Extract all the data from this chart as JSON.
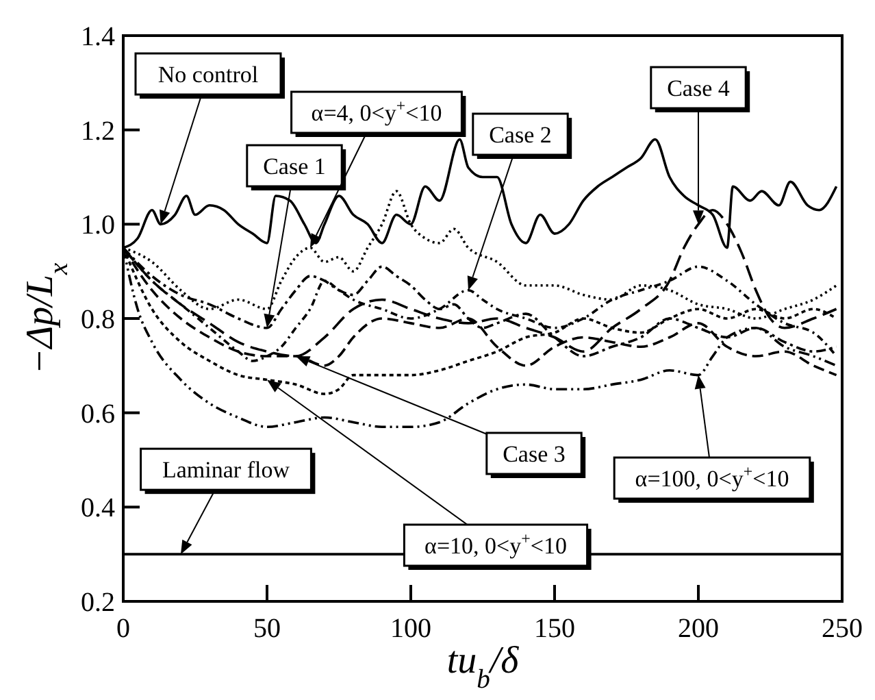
{
  "chart_data": {
    "type": "line",
    "xlabel": "tu$_{b}$/δ",
    "ylabel": "−Δp/L$_{x}$",
    "xlim": [
      0,
      250
    ],
    "ylim": [
      0.2,
      1.4
    ],
    "xticks": [
      0,
      50,
      100,
      150,
      200,
      250
    ],
    "yticks": [
      {
        "value": 0.2,
        "label": "0.2"
      },
      {
        "value": 0.4,
        "label": "0.4"
      },
      {
        "value": 0.6,
        "label": "0.6"
      },
      {
        "value": 0.8,
        "label": "0.8"
      },
      {
        "value": 1.0,
        "label": "1.0"
      },
      {
        "value": 1.2,
        "label": "1.2"
      },
      {
        "value": 1.4,
        "label": "1.4"
      }
    ],
    "grid": false,
    "marker": "none",
    "series": [
      {
        "name": "No control",
        "color": "#000000",
        "line_style": "solid",
        "x": [
          0,
          5,
          10,
          13,
          18,
          22,
          25,
          30,
          35,
          40,
          45,
          50,
          53,
          58,
          63,
          67,
          70,
          75,
          80,
          85,
          90,
          95,
          100,
          105,
          110,
          117,
          120,
          125,
          130,
          135,
          140,
          145,
          150,
          155,
          160,
          165,
          170,
          175,
          180,
          185,
          190,
          195,
          200,
          205,
          210,
          212,
          218,
          222,
          228,
          232,
          238,
          242,
          248
        ],
        "values": [
          0.95,
          0.97,
          1.03,
          1.0,
          1.02,
          1.06,
          1.02,
          1.04,
          1.03,
          1.0,
          0.98,
          0.96,
          1.06,
          1.05,
          1.0,
          0.96,
          1.0,
          1.06,
          1.02,
          1.0,
          0.96,
          1.02,
          1.0,
          1.08,
          1.05,
          1.18,
          1.12,
          1.1,
          1.1,
          1.0,
          0.96,
          1.02,
          0.98,
          1.0,
          1.05,
          1.08,
          1.1,
          1.12,
          1.14,
          1.18,
          1.1,
          1.06,
          1.04,
          1.02,
          0.95,
          1.08,
          1.05,
          1.07,
          1.04,
          1.09,
          1.04,
          1.03,
          1.08
        ]
      },
      {
        "name": "Case 1",
        "color": "#000000",
        "line_style": "dashed",
        "x": [
          0,
          10,
          20,
          30,
          40,
          50,
          55,
          60,
          65,
          70,
          75,
          80,
          85,
          90,
          95,
          100,
          105,
          110,
          115,
          120,
          125,
          130,
          140,
          150,
          160,
          170,
          180,
          190,
          200,
          210,
          220,
          230,
          240,
          248
        ],
        "values": [
          0.95,
          0.89,
          0.85,
          0.83,
          0.8,
          0.78,
          0.82,
          0.86,
          0.89,
          0.88,
          0.86,
          0.85,
          0.88,
          0.91,
          0.89,
          0.87,
          0.84,
          0.82,
          0.83,
          0.8,
          0.78,
          0.79,
          0.81,
          0.76,
          0.72,
          0.74,
          0.76,
          0.8,
          0.78,
          0.76,
          0.78,
          0.75,
          0.73,
          0.74
        ]
      },
      {
        "name": "α=4, 0<y$^{+}$<10",
        "color": "#000000",
        "line_style": "dotted",
        "x": [
          0,
          10,
          20,
          30,
          40,
          50,
          55,
          60,
          65,
          70,
          75,
          80,
          85,
          90,
          95,
          100,
          105,
          110,
          115,
          120,
          130,
          140,
          150,
          160,
          170,
          180,
          190,
          200,
          210,
          220,
          230,
          240,
          248
        ],
        "values": [
          0.95,
          0.92,
          0.86,
          0.82,
          0.84,
          0.82,
          0.88,
          0.93,
          0.95,
          0.92,
          0.93,
          0.9,
          0.95,
          1.0,
          1.07,
          1.0,
          0.97,
          0.96,
          0.99,
          0.95,
          0.92,
          0.87,
          0.87,
          0.85,
          0.84,
          0.87,
          0.86,
          0.83,
          0.82,
          0.8,
          0.82,
          0.84,
          0.87
        ]
      },
      {
        "name": "Case 2",
        "color": "#000000",
        "line_style": "dashed",
        "x": [
          0,
          10,
          20,
          30,
          40,
          45,
          50,
          55,
          60,
          65,
          70,
          75,
          80,
          90,
          100,
          110,
          120,
          125,
          130,
          140,
          150,
          160,
          170,
          180,
          190,
          200,
          210,
          220,
          230,
          240,
          248
        ],
        "values": [
          0.95,
          0.88,
          0.83,
          0.78,
          0.73,
          0.71,
          0.72,
          0.74,
          0.78,
          0.82,
          0.88,
          0.86,
          0.84,
          0.82,
          0.8,
          0.82,
          0.86,
          0.84,
          0.82,
          0.8,
          0.78,
          0.8,
          0.84,
          0.86,
          0.88,
          0.91,
          0.88,
          0.83,
          0.79,
          0.77,
          0.72
        ]
      },
      {
        "name": "Case 3",
        "color": "#000000",
        "line_style": "dashed",
        "x": [
          0,
          10,
          20,
          30,
          40,
          50,
          60,
          70,
          75,
          80,
          90,
          100,
          110,
          120,
          130,
          140,
          150,
          160,
          170,
          180,
          190,
          200,
          210,
          220,
          230,
          240,
          248
        ],
        "values": [
          0.95,
          0.86,
          0.8,
          0.76,
          0.73,
          0.72,
          0.72,
          0.7,
          0.72,
          0.76,
          0.8,
          0.79,
          0.78,
          0.8,
          0.74,
          0.7,
          0.74,
          0.76,
          0.75,
          0.74,
          0.76,
          0.79,
          0.74,
          0.72,
          0.73,
          0.7,
          0.68
        ]
      },
      {
        "name": "Case 4",
        "color": "#000000",
        "line_style": "dashed",
        "x": [
          0,
          10,
          20,
          30,
          40,
          50,
          60,
          70,
          80,
          90,
          100,
          110,
          120,
          130,
          140,
          150,
          160,
          170,
          180,
          190,
          195,
          200,
          205,
          210,
          215,
          220,
          225,
          230,
          240,
          248
        ],
        "values": [
          0.95,
          0.88,
          0.83,
          0.79,
          0.75,
          0.73,
          0.72,
          0.76,
          0.82,
          0.84,
          0.82,
          0.8,
          0.79,
          0.8,
          0.78,
          0.76,
          0.73,
          0.78,
          0.82,
          0.88,
          0.95,
          1.0,
          1.03,
          1.0,
          0.94,
          0.86,
          0.8,
          0.78,
          0.8,
          0.82
        ]
      },
      {
        "name": "α=10, 0<y$^{+}$<10",
        "color": "#000000",
        "line_style": "dotted",
        "x": [
          0,
          10,
          20,
          30,
          40,
          50,
          60,
          70,
          75,
          80,
          90,
          100,
          110,
          120,
          130,
          140,
          150,
          160,
          170,
          180,
          190,
          200,
          210,
          220,
          230,
          240,
          248
        ],
        "values": [
          0.95,
          0.82,
          0.75,
          0.71,
          0.68,
          0.67,
          0.66,
          0.64,
          0.65,
          0.68,
          0.68,
          0.68,
          0.69,
          0.71,
          0.73,
          0.76,
          0.77,
          0.8,
          0.78,
          0.77,
          0.8,
          0.82,
          0.8,
          0.82,
          0.8,
          0.82,
          0.8
        ]
      },
      {
        "name": "α=100, 0<y$^{+}$<10",
        "color": "#000000",
        "line_style": "dashed",
        "x": [
          0,
          5,
          10,
          20,
          30,
          40,
          50,
          60,
          70,
          80,
          90,
          100,
          110,
          120,
          130,
          140,
          150,
          160,
          170,
          180,
          190,
          200,
          205,
          210,
          220,
          230,
          240,
          248
        ],
        "values": [
          0.95,
          0.82,
          0.75,
          0.67,
          0.62,
          0.59,
          0.57,
          0.58,
          0.59,
          0.58,
          0.57,
          0.57,
          0.58,
          0.62,
          0.65,
          0.66,
          0.65,
          0.65,
          0.66,
          0.67,
          0.69,
          0.68,
          0.72,
          0.76,
          0.78,
          0.74,
          0.72,
          0.7
        ]
      }
    ],
    "ref_lines": [
      {
        "axis": "y",
        "value": 0.3,
        "label": "Laminar flow",
        "color": "#000000",
        "line_style": "solid"
      }
    ]
  }
}
